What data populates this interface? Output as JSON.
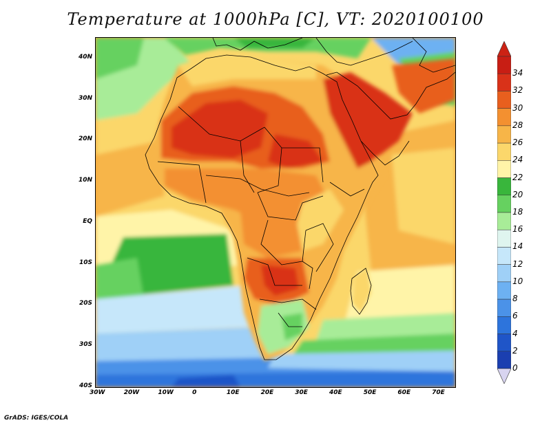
{
  "title": "Temperature at 1000hPa [C], VT: 2020100100",
  "credit": "GrADS: IGES/COLA",
  "map": {
    "lon_range": [
      -30,
      75
    ],
    "lat_range": [
      -40,
      45
    ],
    "x_ticks": [
      "30W",
      "20W",
      "10W",
      "0",
      "10E",
      "20E",
      "30E",
      "40E",
      "50E",
      "60E",
      "70E"
    ],
    "y_ticks": [
      "40N",
      "30N",
      "20N",
      "10N",
      "EQ",
      "10S",
      "20S",
      "30S",
      "40S"
    ],
    "variable": "Temperature at 1000hPa",
    "units": "C"
  },
  "colorbar": {
    "labels": [
      "0",
      "2",
      "4",
      "6",
      "8",
      "10",
      "12",
      "14",
      "16",
      "18",
      "20",
      "22",
      "24",
      "26",
      "28",
      "30",
      "32",
      "34"
    ],
    "colors": [
      "#2a23a0",
      "#1b3fb0",
      "#1f55c8",
      "#2d74dc",
      "#4b92e8",
      "#6db1f2",
      "#9fd0f7",
      "#c6e7fa",
      "#dff5ef",
      "#a8ec98",
      "#66d160",
      "#39b63c",
      "#fff4a8",
      "#fbd76b",
      "#f7b548",
      "#f39030",
      "#e85f1e",
      "#d93219",
      "#c81e14"
    ],
    "under_color": "#d8d4f0",
    "over_color": "#cc2214"
  }
}
